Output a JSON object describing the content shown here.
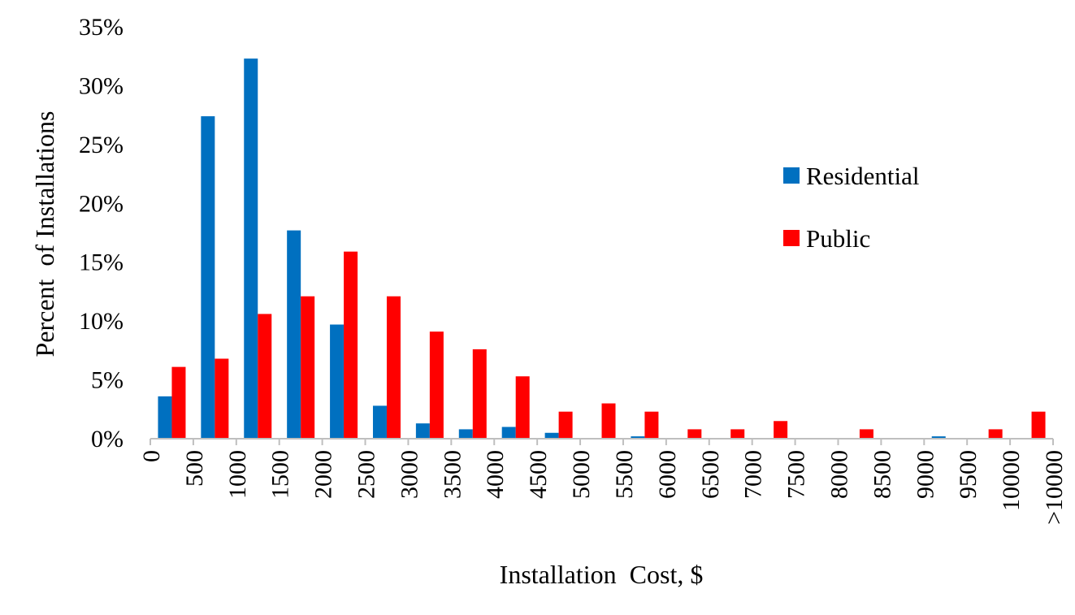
{
  "chart_data": {
    "type": "bar",
    "xlabel": "Installation  Cost, $",
    "ylabel": "Percent  of Installations",
    "ylim": [
      0,
      35
    ],
    "yticks": [
      "0%",
      "5%",
      "10%",
      "15%",
      "20%",
      "25%",
      "30%",
      "35%"
    ],
    "x_tick_labels": [
      "0",
      "500",
      "1000",
      "1500",
      "2000",
      "2500",
      "3000",
      "3500",
      "4000",
      "4500",
      "5000",
      "5500",
      "6000",
      "6500",
      "7000",
      "7500",
      "8000",
      "8500",
      "9000",
      "9500",
      "10000",
      ">10000"
    ],
    "legend_position": "right",
    "grid": false,
    "series": [
      {
        "name": "Residential",
        "color": "#0070C0",
        "values": [
          3.6,
          27.4,
          32.3,
          17.7,
          9.7,
          2.8,
          1.3,
          0.8,
          1.0,
          0.5,
          0.0,
          0.2,
          0.0,
          0.0,
          0.0,
          0.0,
          0.0,
          0.0,
          0.2,
          0.0,
          0.0
        ]
      },
      {
        "name": "Public",
        "color": "#FF0000",
        "values": [
          6.1,
          6.8,
          10.6,
          12.1,
          15.9,
          12.1,
          9.1,
          7.6,
          5.3,
          2.3,
          3.0,
          2.3,
          0.8,
          0.8,
          1.5,
          0.0,
          0.8,
          0.0,
          0.0,
          0.8,
          2.3
        ]
      }
    ]
  }
}
